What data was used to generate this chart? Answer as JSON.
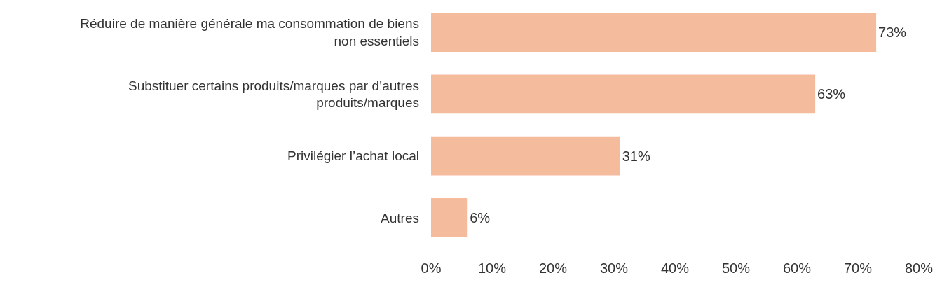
{
  "chart_data": {
    "type": "bar",
    "orientation": "horizontal",
    "categories": [
      "Réduire de manière générale ma consommation de biens non essentiels",
      "Substituer certains produits/marques par d’autres produits/marques",
      "Privilégier l’achat local",
      "Autres"
    ],
    "values": [
      73,
      63,
      31,
      6
    ],
    "color": "#f5bb9d",
    "value_labels": [
      "73%",
      "63%",
      "31%",
      "6%"
    ],
    "xlim": [
      0,
      80
    ],
    "xticks": [
      {
        "value": 0,
        "label": "0%"
      },
      {
        "value": 10,
        "label": "10%"
      },
      {
        "value": 20,
        "label": "20%"
      },
      {
        "value": 30,
        "label": "30%"
      },
      {
        "value": 40,
        "label": "40%"
      },
      {
        "value": 50,
        "label": "50%"
      },
      {
        "value": 60,
        "label": "60%"
      },
      {
        "value": 70,
        "label": "70%"
      },
      {
        "value": 80,
        "label": "80%"
      }
    ]
  }
}
